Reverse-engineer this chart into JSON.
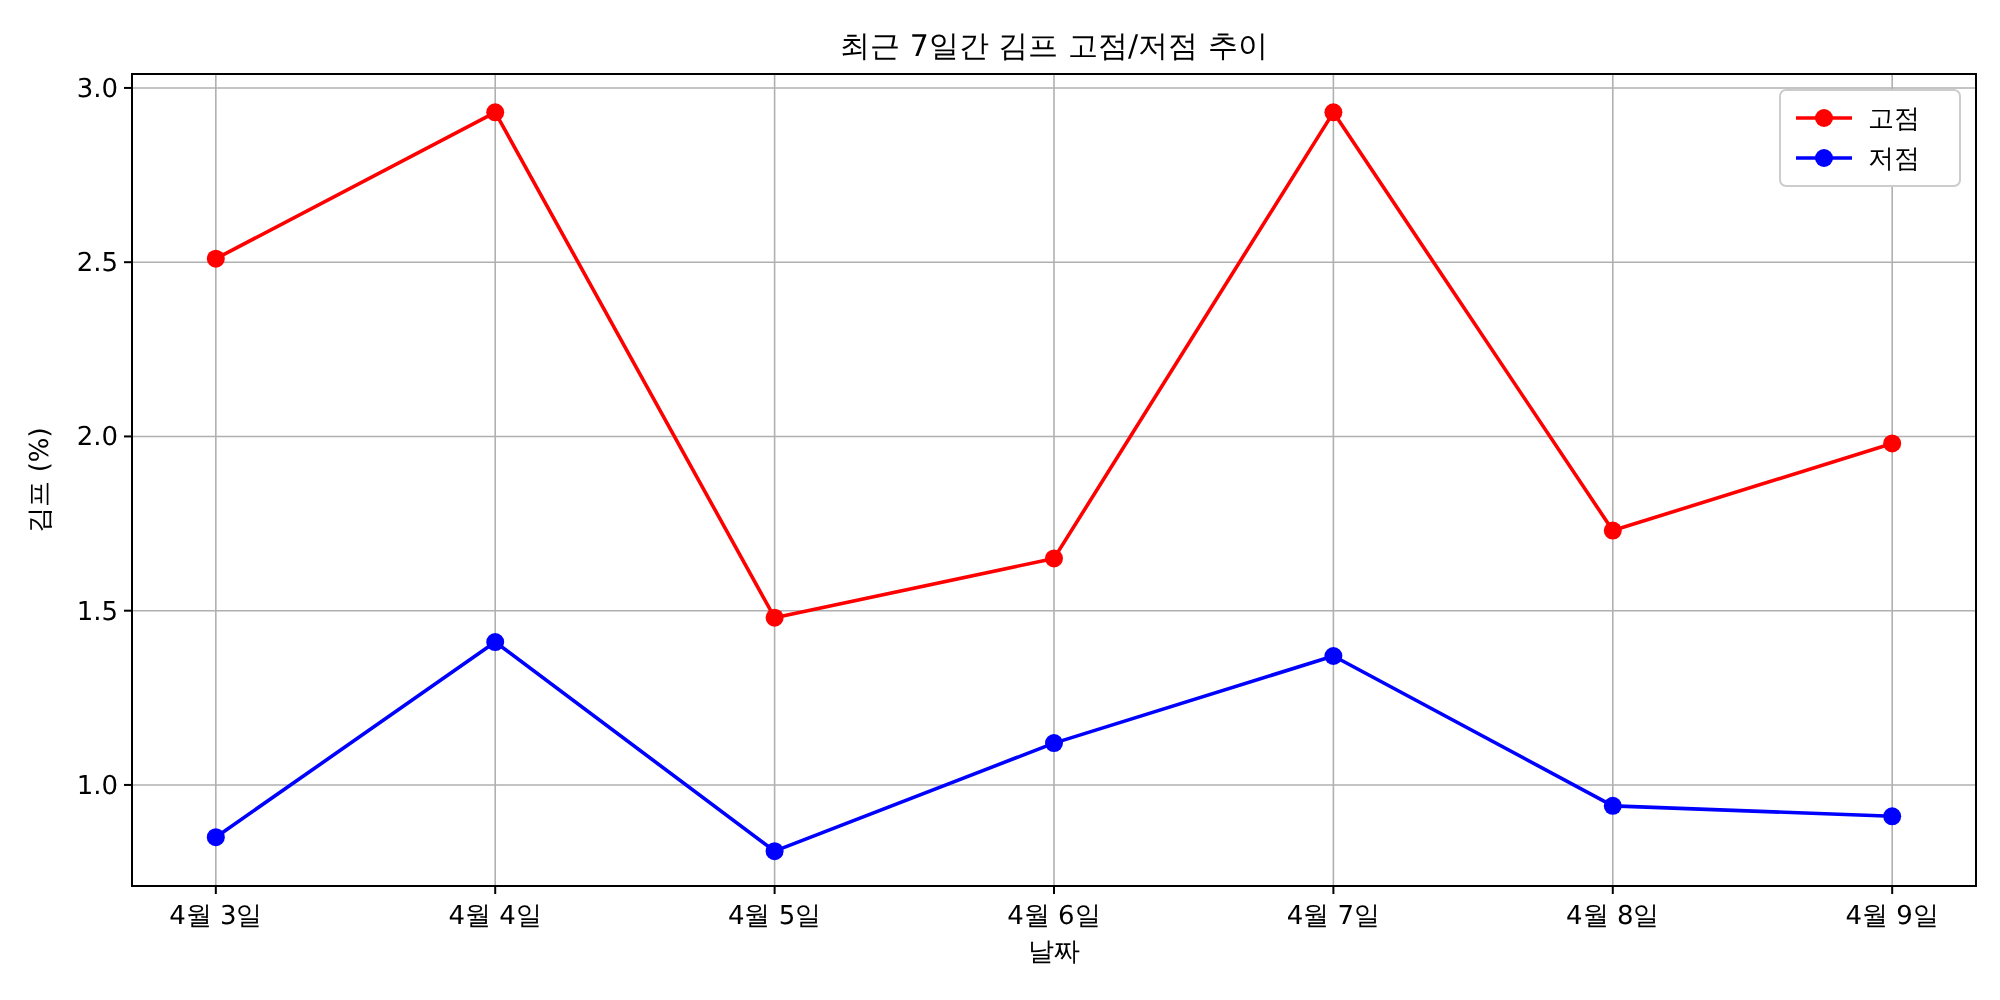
{
  "chart_data": {
    "type": "line",
    "title": "최근 7일간 김프 고점/저점 추이",
    "xlabel": "날짜",
    "ylabel": "김프 (%)",
    "categories": [
      "4월 3일",
      "4월 4일",
      "4월 5일",
      "4월 6일",
      "4월 7일",
      "4월 8일",
      "4월 9일"
    ],
    "series": [
      {
        "name": "고점",
        "color": "#ff0000",
        "values": [
          2.51,
          2.93,
          1.48,
          1.65,
          2.93,
          1.73,
          1.98
        ]
      },
      {
        "name": "저점",
        "color": "#0000ff",
        "values": [
          0.85,
          1.41,
          0.81,
          1.12,
          1.37,
          0.94,
          0.91
        ]
      }
    ],
    "ylim": [
      0.71,
      3.04
    ],
    "yticks": [
      {
        "value": 1,
        "label": "1.0"
      },
      {
        "value": 1.5,
        "label": "1.5"
      },
      {
        "value": 2,
        "label": "2.0"
      },
      {
        "value": 2.5,
        "label": "2.5"
      },
      {
        "value": 3,
        "label": "3.0"
      }
    ],
    "grid": true,
    "legend": "top right",
    "marker": "circle",
    "line_style": "solid"
  }
}
